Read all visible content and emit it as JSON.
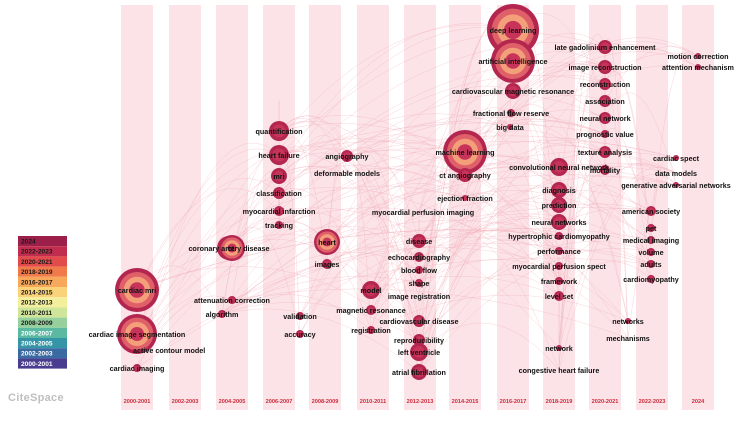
{
  "brand": "CiteSpace",
  "colors": {
    "band": "#fbe3e8",
    "link": "#f2a9b4",
    "node_dark": "#b3264f",
    "node_mid": "#e0606a",
    "node_light": "#f3a07a",
    "node_core": "#c8335a"
  },
  "columns": [
    "2000-2001",
    "2002-2003",
    "2004-2005",
    "2006-2007",
    "2008-2009",
    "2010-2011",
    "2012-2013",
    "2014-2015",
    "2016-2017",
    "2018-2019",
    "2020-2021",
    "2022-2023",
    "2024"
  ],
  "legend": [
    {
      "label": "2024",
      "color": "#9c1f4a"
    },
    {
      "label": "2022-2023",
      "color": "#c02d4e"
    },
    {
      "label": "2020-2021",
      "color": "#e24b4b"
    },
    {
      "label": "2018-2019",
      "color": "#f07a4a"
    },
    {
      "label": "2016-2017",
      "color": "#f7a85a"
    },
    {
      "label": "2014-2015",
      "color": "#fad27a"
    },
    {
      "label": "2012-2013",
      "color": "#f4ef9c"
    },
    {
      "label": "2010-2011",
      "color": "#cfe69a"
    },
    {
      "label": "2008-2009",
      "color": "#96d19d"
    },
    {
      "label": "2006-2007",
      "color": "#5bb8a1"
    },
    {
      "label": "2004-2005",
      "color": "#3595a6"
    },
    {
      "label": "2002-2003",
      "color": "#3a6aa2"
    },
    {
      "label": "2000-2001",
      "color": "#4a3d8f"
    }
  ],
  "keywords": [
    {
      "label": "cardiac mri",
      "col": 0,
      "size": 22
    },
    {
      "label": "cardiac image segmentation",
      "col": 0,
      "size": 20
    },
    {
      "label": "cardiac imaging",
      "col": 0,
      "size": 4
    },
    {
      "label": "active contour model",
      "col": 0,
      "size": 0
    },
    {
      "label": "coronary artery disease",
      "col": 2,
      "size": 12
    },
    {
      "label": "attenuation correction",
      "col": 2,
      "size": 4
    },
    {
      "label": "algorithm",
      "col": 2,
      "size": 4
    },
    {
      "label": "ct",
      "col": 2,
      "size": 13
    },
    {
      "label": "quantification",
      "col": 3,
      "size": 10
    },
    {
      "label": "heart failure",
      "col": 3,
      "size": 10
    },
    {
      "label": "mri",
      "col": 3,
      "size": 8
    },
    {
      "label": "classification",
      "col": 3,
      "size": 6
    },
    {
      "label": "myocardial infarction",
      "col": 3,
      "size": 5
    },
    {
      "label": "tracking",
      "col": 3,
      "size": 4
    },
    {
      "label": "validation",
      "col": 3,
      "size": 4
    },
    {
      "label": "accuracy",
      "col": 3,
      "size": 4
    },
    {
      "label": "angiography",
      "col": 4,
      "size": 6
    },
    {
      "label": "deformable models",
      "col": 4,
      "size": 0
    },
    {
      "label": "heart",
      "col": 4,
      "size": 13
    },
    {
      "label": "images",
      "col": 4,
      "size": 5
    },
    {
      "label": "model",
      "col": 5,
      "size": 9
    },
    {
      "label": "magnetic resonance",
      "col": 5,
      "size": 5
    },
    {
      "label": "registration",
      "col": 5,
      "size": 4
    },
    {
      "label": "image registration",
      "col": 6,
      "size": 0
    },
    {
      "label": "myocardial perfusion imaging",
      "col": 6,
      "size": 0
    },
    {
      "label": "disease",
      "col": 6,
      "size": 7
    },
    {
      "label": "echocardiography",
      "col": 6,
      "size": 5
    },
    {
      "label": "blood flow",
      "col": 6,
      "size": 4
    },
    {
      "label": "shape",
      "col": 6,
      "size": 4
    },
    {
      "label": "cardiovascular disease",
      "col": 6,
      "size": 6
    },
    {
      "label": "reproducibility",
      "col": 6,
      "size": 6
    },
    {
      "label": "left ventricle",
      "col": 6,
      "size": 9
    },
    {
      "label": "atrial fibrillation",
      "col": 6,
      "size": 8
    },
    {
      "label": "machine learning",
      "col": 7,
      "size": 22
    },
    {
      "label": "ct angiography",
      "col": 7,
      "size": 7
    },
    {
      "label": "ejection fraction",
      "col": 7,
      "size": 3
    },
    {
      "label": "deep learning",
      "col": 8,
      "size": 26
    },
    {
      "label": "artificial intelligence",
      "col": 8,
      "size": 22
    },
    {
      "label": "cardiovascular magnetic resonance",
      "col": 8,
      "size": 8
    },
    {
      "label": "fractional flow reserve",
      "col": 8,
      "size": 4
    },
    {
      "label": "big data",
      "col": 8,
      "size": 3
    },
    {
      "label": "convolutional neural network",
      "col": 9,
      "size": 9
    },
    {
      "label": "diagnosis",
      "col": 9,
      "size": 8
    },
    {
      "label": "prediction",
      "col": 9,
      "size": 8
    },
    {
      "label": "neural networks",
      "col": 9,
      "size": 8
    },
    {
      "label": "hypertrophic cardiomyopathy",
      "col": 9,
      "size": 4
    },
    {
      "label": "performance",
      "col": 9,
      "size": 4
    },
    {
      "label": "myocardial perfusion spect",
      "col": 9,
      "size": 4
    },
    {
      "label": "framework",
      "col": 9,
      "size": 4
    },
    {
      "label": "level set",
      "col": 9,
      "size": 5
    },
    {
      "label": "network",
      "col": 9,
      "size": 3
    },
    {
      "label": "congestive heart failure",
      "col": 9,
      "size": 0
    },
    {
      "label": "late gadolinium enhancement",
      "col": 10,
      "size": 7
    },
    {
      "label": "image reconstruction",
      "col": 10,
      "size": 7
    },
    {
      "label": "reconstruction",
      "col": 10,
      "size": 6
    },
    {
      "label": "association",
      "col": 10,
      "size": 6
    },
    {
      "label": "neural network",
      "col": 10,
      "size": 6
    },
    {
      "label": "prognostic value",
      "col": 10,
      "size": 4
    },
    {
      "label": "texture analysis",
      "col": 10,
      "size": 6
    },
    {
      "label": "mortality",
      "col": 10,
      "size": 5
    },
    {
      "label": "american society",
      "col": 11,
      "size": 5
    },
    {
      "label": "pet",
      "col": 11,
      "size": 4
    },
    {
      "label": "medical imaging",
      "col": 11,
      "size": 4
    },
    {
      "label": "volume",
      "col": 11,
      "size": 4
    },
    {
      "label": "adults",
      "col": 11,
      "size": 4
    },
    {
      "label": "cardiomyopathy",
      "col": 11,
      "size": 4
    },
    {
      "label": "networks",
      "col": 11,
      "size": 3
    },
    {
      "label": "mechanisms",
      "col": 11,
      "size": 0
    },
    {
      "label": "cardiac spect",
      "col": 11,
      "size": 3
    },
    {
      "label": "data models",
      "col": 11,
      "size": 0
    },
    {
      "label": "generative adversarial networks",
      "col": 11,
      "size": 3
    },
    {
      "label": "motion correction",
      "col": 12,
      "size": 3
    },
    {
      "label": "attention mechanism",
      "col": 12,
      "size": 3
    }
  ]
}
